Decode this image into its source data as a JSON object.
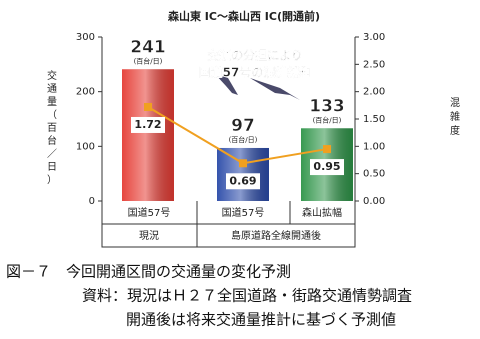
{
  "chart_data": {
    "type": "bar",
    "title": "森山東 IC～森山西 IC(開通前)",
    "y_label": "交通量（百台／日）",
    "y2_label": "混雑度",
    "categories": [
      "国道57号",
      "国道57号",
      "森山拡幅"
    ],
    "group_labels": [
      "現況",
      "島原道路全線開通後"
    ],
    "values": [
      241,
      97,
      133
    ],
    "colors": [
      "#e53c34",
      "#2a4aa8",
      "#2e9448"
    ],
    "value_unit": "(百台/日)",
    "line": {
      "values": [
        1.72,
        0.69,
        0.95
      ],
      "color": "#f0a020",
      "axis": "y2"
    },
    "ylim": [
      0,
      300
    ],
    "yticks": [
      0,
      100,
      200,
      300
    ],
    "y2lim": [
      0,
      3
    ],
    "y2ticks": [
      {
        "value": 0,
        "label": "0.00"
      },
      {
        "value": 0.5,
        "label": "0.50"
      },
      {
        "value": 1,
        "label": "1.00"
      },
      {
        "value": 1.5,
        "label": "1.50"
      },
      {
        "value": 2,
        "label": "2.00"
      },
      {
        "value": 2.5,
        "label": "2.50"
      },
      {
        "value": 3,
        "label": "3.00"
      }
    ],
    "annotation": [
      "交通の分担により",
      "国道57号の混雑緩和"
    ]
  },
  "caption": [
    "図－７　今回開通区間の交通量の変化予測",
    "資料：現況はＨ２７全国道路・街路交通情勢調査",
    "開通後は将来交通量推計に基づく予測値"
  ]
}
